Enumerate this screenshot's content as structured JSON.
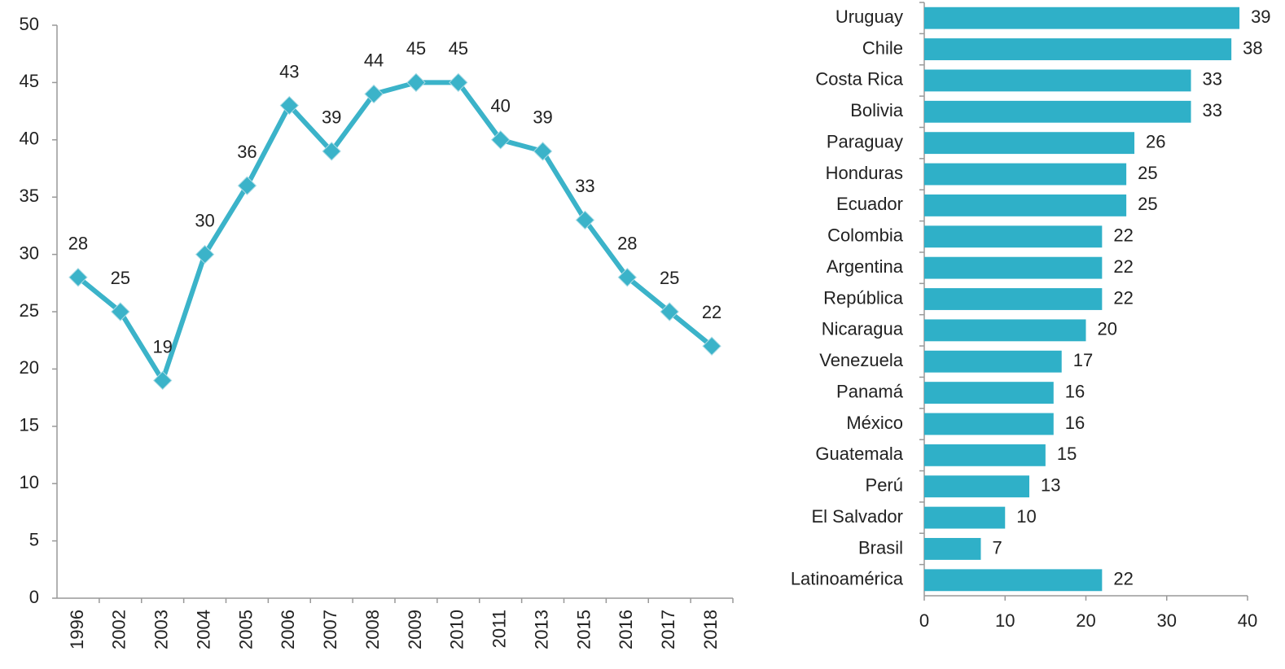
{
  "chart_data": [
    {
      "type": "line",
      "categories": [
        "1996",
        "2002",
        "2003",
        "2004",
        "2005",
        "2006",
        "2007",
        "2008",
        "2009",
        "2010",
        "2011",
        "2013",
        "2015",
        "2016",
        "2017",
        "2018"
      ],
      "values": [
        28,
        25,
        19,
        30,
        36,
        43,
        39,
        44,
        45,
        45,
        40,
        39,
        33,
        28,
        25,
        22
      ],
      "color": "#3bb3c9",
      "ylim": [
        0,
        50
      ],
      "yticks": [
        0,
        5,
        10,
        15,
        20,
        25,
        30,
        35,
        40,
        45,
        50
      ]
    },
    {
      "type": "hbar",
      "categories": [
        "Uruguay",
        "Chile",
        "Costa Rica",
        "Bolivia",
        "Paraguay",
        "Honduras",
        "Ecuador",
        "Colombia",
        "Argentina",
        "República",
        "Nicaragua",
        "Venezuela",
        "Panamá",
        "México",
        "Guatemala",
        "Perú",
        "El Salvador",
        "Brasil",
        "Latinoamérica"
      ],
      "values": [
        39,
        38,
        33,
        33,
        26,
        25,
        25,
        22,
        22,
        22,
        20,
        17,
        16,
        16,
        15,
        13,
        10,
        7,
        22
      ],
      "color": "#2fb0c8",
      "xlim": [
        0,
        40
      ],
      "xticks": [
        0,
        10,
        20,
        30,
        40
      ]
    }
  ]
}
